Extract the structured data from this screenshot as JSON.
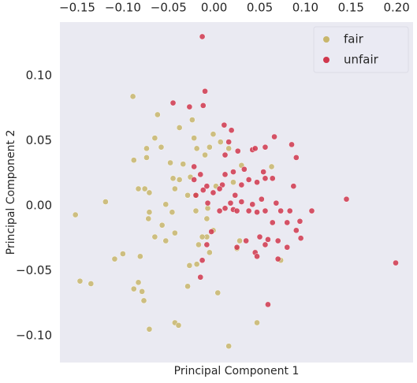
{
  "chart_data": {
    "type": "scatter",
    "x_label": "Principal Component 1",
    "y_label": "Principal Component 2",
    "xlim": [
      -0.169,
      0.218
    ],
    "ylim": [
      -0.1206,
      0.1412
    ],
    "xticks": [
      {
        "value": -0.15,
        "label": "−0.15"
      },
      {
        "value": -0.1,
        "label": "−0.10"
      },
      {
        "value": -0.05,
        "label": "−0.05"
      },
      {
        "value": 0,
        "label": "0.00"
      },
      {
        "value": 0.05,
        "label": "0.05"
      },
      {
        "value": 0.1,
        "label": "0.10"
      },
      {
        "value": 0.15,
        "label": "0.15"
      },
      {
        "value": 0.2,
        "label": "0.20"
      }
    ],
    "yticks": [
      {
        "value": 0.1,
        "label": "0.10"
      },
      {
        "value": 0.05,
        "label": "0.05"
      },
      {
        "value": 0,
        "label": "0.00"
      },
      {
        "value": -0.05,
        "label": "−0.05"
      },
      {
        "value": -0.1,
        "label": "−0.10"
      }
    ],
    "grid": false,
    "legend": "upper right",
    "background": "#eaeaf2",
    "series": [
      {
        "name": "fair",
        "color": "#c8b66c",
        "x": [
          -0.152,
          -0.119,
          -0.147,
          -0.135,
          -0.089,
          -0.109,
          -0.1,
          -0.081,
          -0.088,
          -0.083,
          -0.077,
          -0.079,
          -0.071,
          -0.043,
          -0.039,
          0.016,
          0.047,
          0.004,
          -0.029,
          -0.019,
          -0.027,
          -0.043,
          -0.053,
          -0.057,
          -0.071,
          -0.072,
          -0.088,
          -0.065,
          -0.058,
          -0.074,
          -0.062,
          -0.038,
          -0.024,
          -0.034,
          -0.048,
          -0.038,
          -0.026,
          -0.02,
          -0.029,
          -0.043,
          -0.071,
          -0.076,
          -0.046,
          -0.02,
          -0.007,
          -0.008,
          -0.008,
          -0.013,
          -0.001,
          -0.005,
          -0.017,
          0.025,
          0.028,
          -0.01,
          -0.001,
          -0.022,
          -0.019,
          0.007,
          -0.005,
          0.016,
          0.03,
          0.063,
          0.073,
          0.021,
          0.002,
          -0.065,
          -0.053,
          -0.045,
          -0.083,
          -0.074
        ],
        "values": [
          -0.007,
          0.003,
          -0.058,
          -0.06,
          0.084,
          -0.041,
          -0.037,
          -0.039,
          -0.064,
          -0.059,
          -0.073,
          -0.066,
          -0.095,
          -0.09,
          -0.092,
          -0.108,
          -0.09,
          -0.067,
          -0.062,
          -0.045,
          -0.046,
          -0.021,
          -0.027,
          -0.015,
          -0.005,
          -0.01,
          0.035,
          0.052,
          0.045,
          0.044,
          0.07,
          0.06,
          0.066,
          0.032,
          0.033,
          0.02,
          0.022,
          0.008,
          0.008,
          0.013,
          0.01,
          0.013,
          -0.005,
          -0.004,
          -0.002,
          -0.01,
          -0.024,
          -0.024,
          -0.019,
          -0.036,
          -0.03,
          -0.033,
          -0.027,
          0.039,
          0.055,
          0.052,
          0.044,
          0.049,
          0.045,
          0.044,
          0.031,
          0.03,
          -0.042,
          0.018,
          0.015,
          -0.024,
          0.001,
          0.021,
          0.013,
          0.037
        ]
      },
      {
        "name": "unfair",
        "color": "#d0374d",
        "x": [
          -0.013,
          -0.01,
          -0.045,
          -0.012,
          -0.027,
          0.011,
          0.016,
          0.012,
          0.026,
          0.042,
          0.045,
          0.066,
          0.085,
          0.09,
          0.056,
          0.033,
          0.021,
          0.012,
          0.03,
          0.038,
          0.047,
          0.056,
          0.054,
          0.064,
          0.087,
          0.023,
          0.021,
          0.018,
          0.03,
          0.025,
          0.042,
          0.052,
          0.038,
          0.047,
          0.056,
          0.068,
          0.073,
          0.083,
          0.094,
          0.107,
          0.145,
          0.064,
          0.08,
          0.09,
          0.095,
          0.07,
          0.05,
          0.056,
          0.045,
          0.047,
          0.059,
          0.07,
          0.08,
          0.035,
          0.025,
          -0.013,
          -0.008,
          -0.003,
          0.006,
          -0.007,
          -0.022,
          -0.015,
          -0.008,
          0.009,
          -0.001,
          0.006,
          -0.022,
          -0.02,
          -0.015,
          0.059,
          0.199,
          0.019,
          -0.012,
          0.012
        ],
        "values": [
          0.13,
          0.088,
          0.079,
          0.077,
          0.076,
          0.062,
          0.049,
          0.039,
          0.042,
          0.043,
          0.044,
          0.053,
          0.047,
          0.037,
          0.045,
          0.028,
          0.026,
          0.024,
          0.016,
          0.02,
          0.018,
          0.021,
          0.026,
          0.021,
          0.015,
          0.008,
          -0.003,
          0.002,
          0.003,
          -0.004,
          0.001,
          0.005,
          -0.004,
          -0.005,
          -0.004,
          0.002,
          -0.004,
          -0.004,
          -0.012,
          -0.004,
          0.005,
          -0.013,
          -0.013,
          -0.019,
          -0.025,
          -0.027,
          -0.024,
          -0.03,
          -0.036,
          -0.039,
          -0.026,
          -0.041,
          -0.032,
          -0.027,
          -0.032,
          -0.042,
          -0.03,
          -0.02,
          -0.004,
          0.002,
          0.02,
          0.024,
          0.015,
          0.016,
          0.01,
          0.013,
          0.03,
          0.008,
          -0.055,
          -0.076,
          -0.044,
          0.058,
          0.012,
          -0.002
        ]
      }
    ]
  }
}
